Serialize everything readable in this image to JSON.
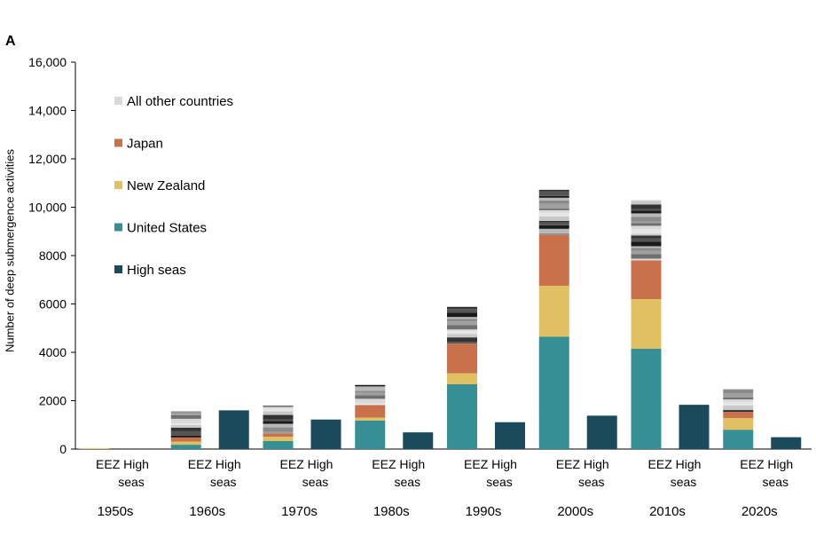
{
  "chart_data": {
    "type": "bar",
    "stacked": true,
    "panel_label": "A",
    "ylabel": "Number of deep submergence activities",
    "ylim": [
      0,
      16000
    ],
    "y_ticks": [
      0,
      2000,
      4000,
      6000,
      8000,
      10000,
      12000,
      14000,
      16000
    ],
    "y_tick_labels": [
      "0",
      "2000",
      "4000",
      "6000",
      "8000",
      "10,000",
      "12,000",
      "14,000",
      "16,000"
    ],
    "decades": [
      "1950s",
      "1960s",
      "1970s",
      "1980s",
      "1990s",
      "2000s",
      "2010s",
      "2020s"
    ],
    "bar_label_top": "EEZ High",
    "bar_label_bottom": "seas",
    "legend_position": "top-left",
    "legend": [
      {
        "name": "All other countries",
        "color": "#d9d9d9"
      },
      {
        "name": "Japan",
        "color": "#c8714b"
      },
      {
        "name": "New Zealand",
        "color": "#e0c060"
      },
      {
        "name": "United States",
        "color": "#358f94"
      },
      {
        "name": "High seas",
        "color": "#1b4a5a"
      }
    ],
    "eez_series": {
      "United States": [
        0,
        180,
        330,
        1180,
        2680,
        4650,
        4150,
        800
      ],
      "New Zealand": [
        30,
        130,
        180,
        120,
        450,
        2100,
        2050,
        480
      ],
      "Japan": [
        0,
        170,
        130,
        520,
        1230,
        2100,
        1600,
        260
      ],
      "All other countries": [
        0,
        1080,
        1160,
        830,
        1520,
        1870,
        2510,
        940
      ]
    },
    "high_seas": [
      0,
      1600,
      1220,
      690,
      1110,
      1380,
      1830,
      490
    ]
  }
}
